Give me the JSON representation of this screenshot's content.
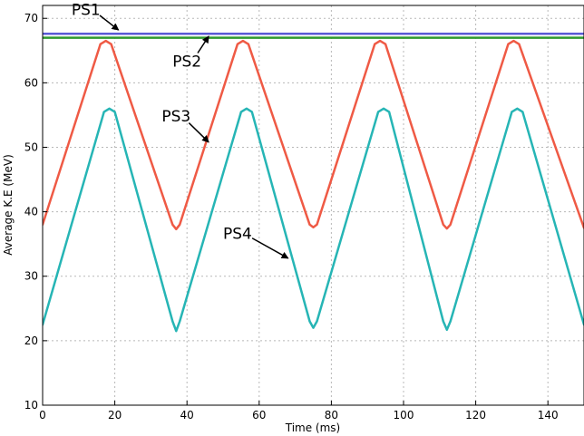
{
  "chart_data": {
    "type": "line",
    "xlabel": "Time (ms)",
    "ylabel": "Average K.E (MeV)",
    "xlim": [
      0,
      150
    ],
    "ylim": [
      10,
      72
    ],
    "x_ticks": [
      0,
      20,
      40,
      60,
      80,
      100,
      120,
      140
    ],
    "y_ticks": [
      10,
      20,
      30,
      40,
      50,
      60,
      70
    ],
    "grid": true,
    "series": [
      {
        "name": "PS1",
        "color": "#5a5ad6",
        "x": [
          0,
          150
        ],
        "y": [
          67.6,
          67.6
        ]
      },
      {
        "name": "PS2",
        "color": "#2e9a2e",
        "x": [
          0,
          150
        ],
        "y": [
          67.0,
          67.0
        ]
      },
      {
        "name": "PS3",
        "color": "#ef5a45",
        "x": [
          0,
          16,
          17.5,
          19,
          36,
          37,
          38,
          54,
          55.5,
          57,
          74,
          75,
          76,
          92,
          93.5,
          95,
          111,
          112,
          113,
          129,
          130.5,
          132,
          150
        ],
        "y": [
          38,
          66,
          66.5,
          66,
          38,
          37.3,
          38,
          66,
          66.5,
          66,
          38,
          37.6,
          38,
          66,
          66.5,
          66,
          38,
          37.4,
          38,
          66,
          66.5,
          66,
          37.5
        ]
      },
      {
        "name": "PS4",
        "color": "#26b5b5",
        "x": [
          0,
          17,
          18.5,
          20,
          36,
          37,
          38,
          55,
          56.5,
          58,
          74,
          75,
          76,
          93,
          94.5,
          96,
          111,
          112,
          113,
          130,
          131.5,
          133,
          150
        ],
        "y": [
          22.5,
          55.5,
          56,
          55.5,
          23,
          21.5,
          23,
          55.5,
          56,
          55.5,
          23,
          22,
          23,
          55.5,
          56,
          55.5,
          23,
          21.7,
          23,
          55.5,
          56,
          55.5,
          22.5
        ]
      }
    ],
    "annotations": [
      {
        "text": "PS1",
        "series": "PS1",
        "x": 12,
        "y": 70.5,
        "arrow_to": [
          21,
          68.2
        ]
      },
      {
        "text": "PS2",
        "series": "PS2",
        "x": 40,
        "y": 62.5,
        "arrow_to": [
          46,
          67.2
        ]
      },
      {
        "text": "PS3",
        "series": "PS3",
        "x": 37,
        "y": 54,
        "arrow_to": [
          46,
          50.8
        ]
      },
      {
        "text": "PS4",
        "series": "PS4",
        "x": 54,
        "y": 35.8,
        "arrow_to": [
          68,
          32.8
        ]
      }
    ]
  }
}
